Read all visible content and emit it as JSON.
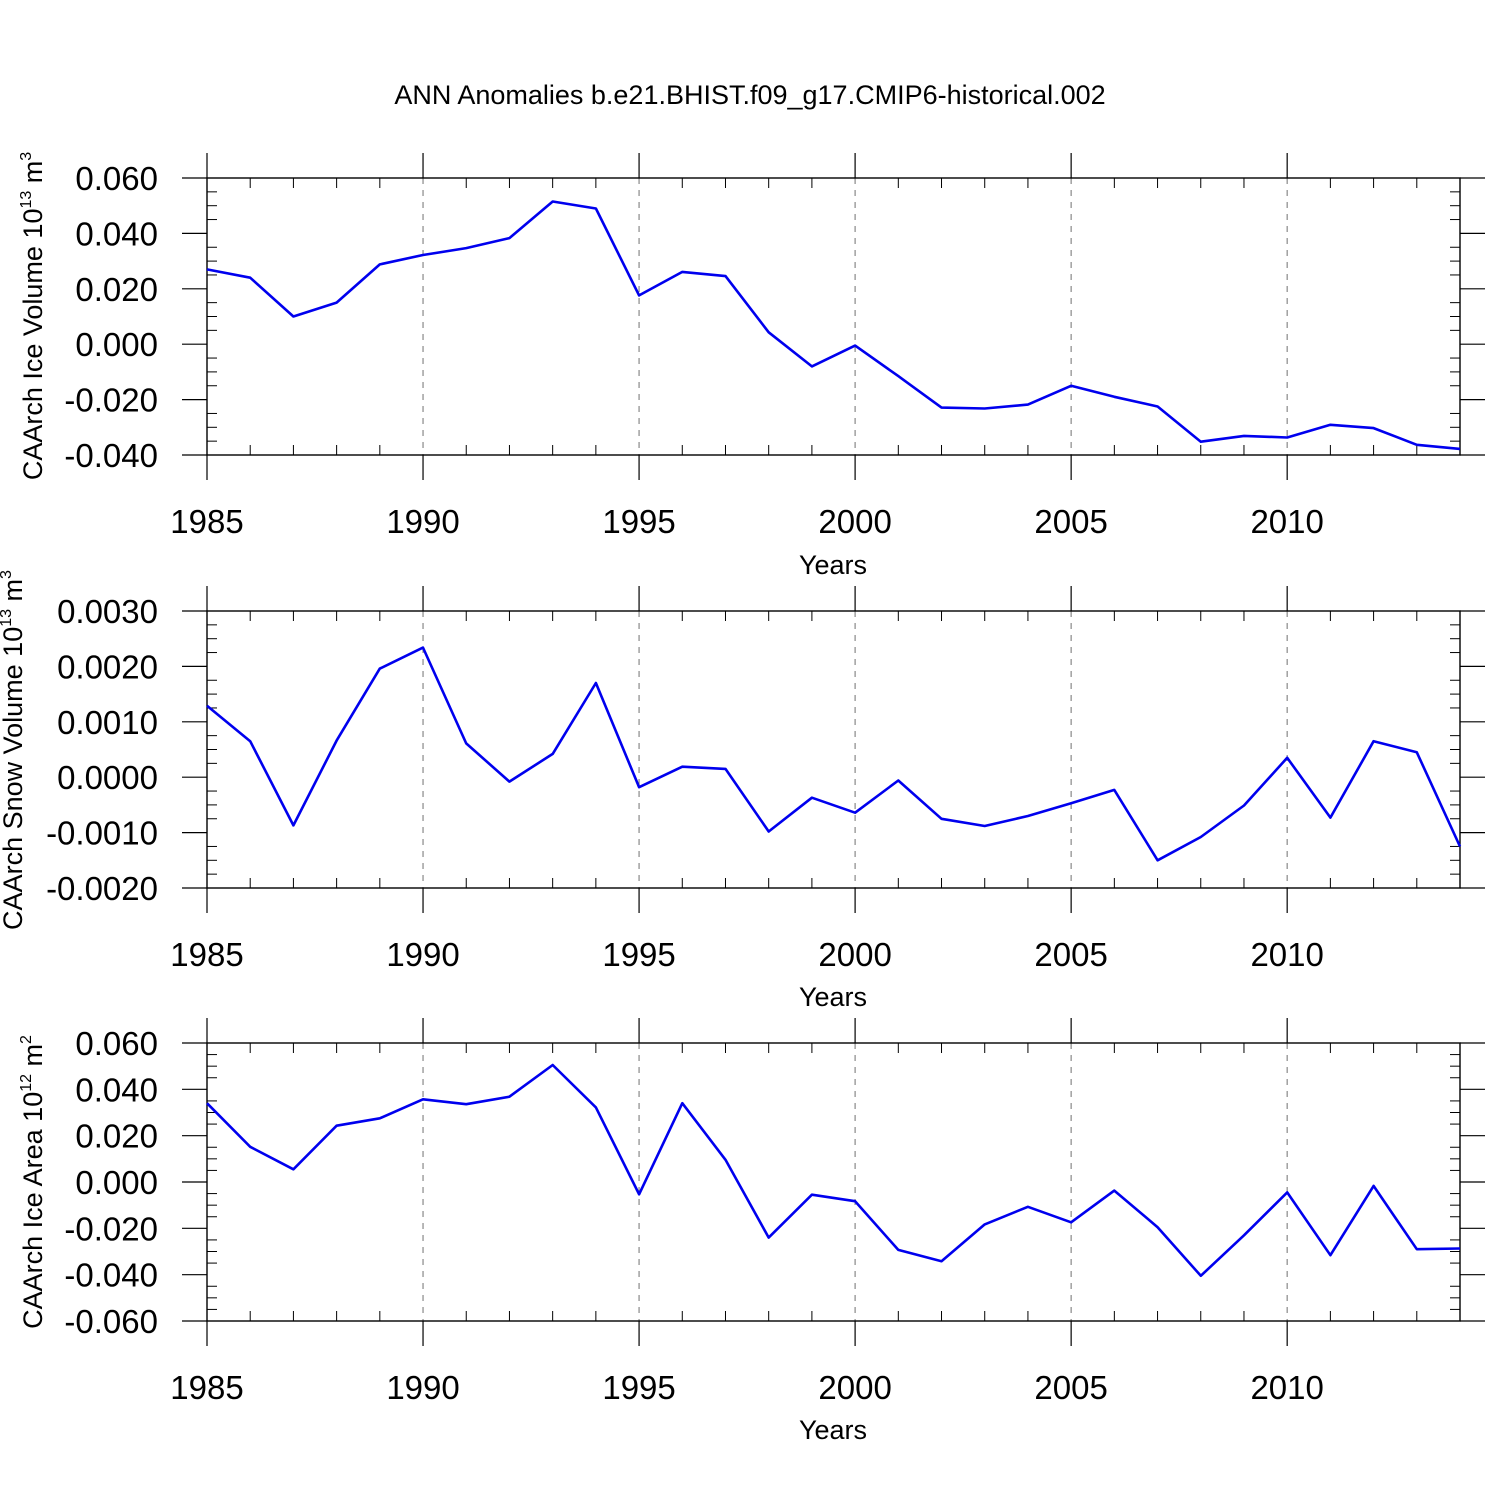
{
  "title": "ANN Anomalies b.e21.BHIST.f09_g17.CMIP6-historical.002",
  "chart_data": [
    {
      "type": "line",
      "ylabel": {
        "text": "CAArch Ice Volume 10",
        "exponent": "13",
        "unit": " m",
        "unit_exponent": "3"
      },
      "xlabel": "Years",
      "xlim": [
        1985,
        2014
      ],
      "ylim": [
        -0.04,
        0.06
      ],
      "xticks": [
        1985,
        1990,
        1995,
        2000,
        2005,
        2010
      ],
      "xtick_labels": [
        "1985",
        "1990",
        "1995",
        "2000",
        "2005",
        "2010"
      ],
      "yticks": [
        0.06,
        0.04,
        0.02,
        0.0,
        -0.02,
        -0.04
      ],
      "ytick_labels": [
        "0.060",
        "0.040",
        "0.020",
        "0.000",
        "-0.020",
        "-0.040"
      ],
      "grid": "dashed vertical lines at major x ticks",
      "series": [
        {
          "color": "#0000ee",
          "x": [
            1985,
            1986,
            1987,
            1988,
            1989,
            1990,
            1991,
            1992,
            1993,
            1994,
            1995,
            1996,
            1997,
            1998,
            1999,
            2000,
            2001,
            2002,
            2003,
            2004,
            2005,
            2006,
            2007,
            2008,
            2009,
            2010,
            2011,
            2012,
            2013,
            2014
          ],
          "y": [
            0.027,
            0.024,
            0.01,
            0.015,
            0.0288,
            0.0322,
            0.0347,
            0.0383,
            0.0515,
            0.049,
            0.0176,
            0.0261,
            0.0246,
            0.0043,
            -0.008,
            -0.0005,
            -0.0115,
            -0.0229,
            -0.0232,
            -0.0218,
            -0.015,
            -0.019,
            -0.0225,
            -0.0352,
            -0.0331,
            -0.0337,
            -0.0291,
            -0.0303,
            -0.0363,
            -0.0378
          ]
        }
      ]
    },
    {
      "type": "line",
      "ylabel": {
        "text": "CAArch Snow Volume 10",
        "exponent": "13",
        "unit": " m",
        "unit_exponent": "3"
      },
      "xlabel": "Years",
      "xlim": [
        1985,
        2014
      ],
      "ylim": [
        -0.002,
        0.003
      ],
      "xticks": [
        1985,
        1990,
        1995,
        2000,
        2005,
        2010
      ],
      "xtick_labels": [
        "1985",
        "1990",
        "1995",
        "2000",
        "2005",
        "2010"
      ],
      "yticks": [
        0.003,
        0.002,
        0.001,
        0.0,
        -0.001,
        -0.002
      ],
      "ytick_labels": [
        "0.0030",
        "0.0020",
        "0.0010",
        "0.0000",
        "-0.0010",
        "-0.0020"
      ],
      "grid": "dashed vertical lines at major x ticks",
      "series": [
        {
          "color": "#0000ee",
          "x": [
            1985,
            1986,
            1987,
            1988,
            1989,
            1990,
            1991,
            1992,
            1993,
            1994,
            1995,
            1996,
            1997,
            1998,
            1999,
            2000,
            2001,
            2002,
            2003,
            2004,
            2005,
            2006,
            2007,
            2008,
            2009,
            2010,
            2011,
            2012,
            2013,
            2014
          ],
          "y": [
            0.00129,
            0.00065,
            -0.00087,
            0.00066,
            0.00196,
            0.00234,
            0.00061,
            -8e-05,
            0.00042,
            0.0017,
            -0.00018,
            0.00019,
            0.00015,
            -0.00098,
            -0.00037,
            -0.00064,
            -6e-05,
            -0.00075,
            -0.00088,
            -0.0007,
            -0.00047,
            -0.00023,
            -0.0015,
            -0.00108,
            -0.00051,
            0.00035,
            -0.00073,
            0.00065,
            0.00045,
            -0.00125
          ]
        }
      ]
    },
    {
      "type": "line",
      "ylabel": {
        "text": "CAArch Ice Area 10",
        "exponent": "12",
        "unit": " m",
        "unit_exponent": "2"
      },
      "xlabel": "Years",
      "xlim": [
        1985,
        2014
      ],
      "ylim": [
        -0.06,
        0.06
      ],
      "xticks": [
        1985,
        1990,
        1995,
        2000,
        2005,
        2010
      ],
      "xtick_labels": [
        "1985",
        "1990",
        "1995",
        "2000",
        "2005",
        "2010"
      ],
      "yticks": [
        0.06,
        0.04,
        0.02,
        0.0,
        -0.02,
        -0.04,
        -0.06
      ],
      "ytick_labels": [
        "0.060",
        "0.040",
        "0.020",
        "0.000",
        "-0.020",
        "-0.040",
        "-0.060"
      ],
      "grid": "dashed vertical lines at major x ticks",
      "series": [
        {
          "color": "#0000ee",
          "x": [
            1985,
            1986,
            1987,
            1988,
            1989,
            1990,
            1991,
            1992,
            1993,
            1994,
            1995,
            1996,
            1997,
            1998,
            1999,
            2000,
            2001,
            2002,
            2003,
            2004,
            2005,
            2006,
            2007,
            2008,
            2009,
            2010,
            2011,
            2012,
            2013,
            2014
          ],
          "y": [
            0.034,
            0.0152,
            0.0055,
            0.0243,
            0.0275,
            0.0357,
            0.0336,
            0.0368,
            0.0505,
            0.0322,
            -0.0053,
            0.034,
            0.0096,
            -0.024,
            -0.0055,
            -0.0083,
            -0.0293,
            -0.0342,
            -0.0183,
            -0.0107,
            -0.0174,
            -0.0037,
            -0.0195,
            -0.0405,
            -0.023,
            -0.0045,
            -0.0316,
            -0.0017,
            -0.029,
            -0.0287
          ]
        }
      ]
    }
  ]
}
